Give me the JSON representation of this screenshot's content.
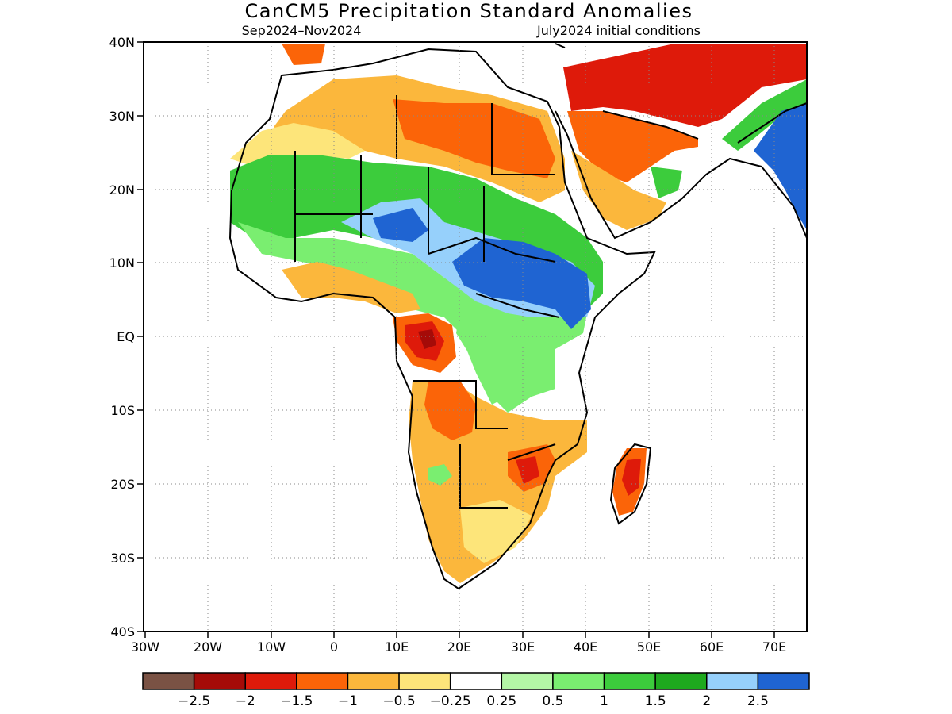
{
  "title": "CanCM5 Precipitation Standard Anomalies",
  "subtitle_left": "Sep2024–Nov2024",
  "subtitle_right": "July2024 initial conditions",
  "lat_labels": [
    "40N",
    "30N",
    "20N",
    "10N",
    "EQ",
    "10S",
    "20S",
    "30S",
    "40S"
  ],
  "lon_labels": [
    "30W",
    "20W",
    "10W",
    "0",
    "10E",
    "20E",
    "30E",
    "40E",
    "50E",
    "60E",
    "70E"
  ],
  "legend": {
    "colors": [
      "#7a5244",
      "#a50b08",
      "#de1a0a",
      "#fb6408",
      "#fbb73c",
      "#fde57a",
      "#ffffff",
      "#b4f6a6",
      "#7aee70",
      "#3ccc3c",
      "#1ea91e",
      "#96d0fb",
      "#1f64d2"
    ],
    "labels": [
      "−2.5",
      "−2",
      "−1.5",
      "−1",
      "−0.5",
      "−0.25",
      "0.25",
      "0.5",
      "1",
      "1.5",
      "2",
      "2.5"
    ]
  }
}
